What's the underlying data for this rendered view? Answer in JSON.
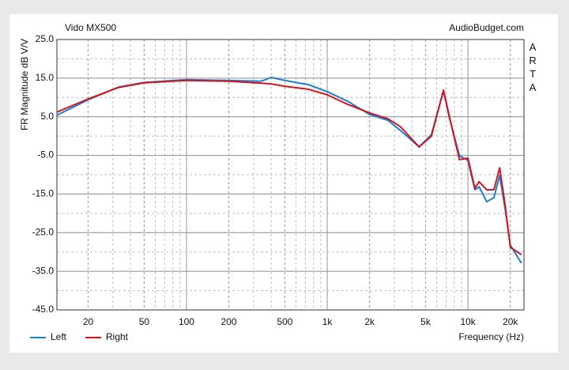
{
  "chart_data": {
    "type": "line",
    "title": "Vido MX500",
    "source": "AudioBudget.com",
    "side_label": "ARTA",
    "y_label": "FR Magnitude dB V/V",
    "x_label": "Frequency (Hz)",
    "log_x": true,
    "grid": true,
    "minor_grid": true,
    "legend": "bottom-left",
    "xlim": [
      12,
      25000
    ],
    "ylim": [
      -45,
      25
    ],
    "xticks": [
      20,
      50,
      100,
      200,
      500,
      {
        "value": 1000,
        "label": "1k"
      },
      {
        "value": 2000,
        "label": "2k"
      },
      {
        "value": 5000,
        "label": "5k"
      },
      {
        "value": 10000,
        "label": "10k"
      },
      {
        "value": 20000,
        "label": "20k"
      }
    ],
    "yticks": [
      {
        "value": 25,
        "label": "25.0"
      },
      {
        "value": 15,
        "label": "15.0"
      },
      {
        "value": 5,
        "label": "5.0"
      },
      {
        "value": -5,
        "label": "-5.0"
      },
      {
        "value": -15,
        "label": "-15.0"
      },
      {
        "value": -25,
        "label": "-25.0"
      },
      {
        "value": -35,
        "label": "-35.0"
      },
      {
        "value": -45,
        "label": "-45.0"
      }
    ],
    "x": [
      12,
      20,
      33,
      50,
      100,
      200,
      340,
      400,
      500,
      740,
      1000,
      1400,
      2000,
      2700,
      3300,
      4500,
      5500,
      6700,
      7400,
      8700,
      10000,
      11200,
      12000,
      13600,
      15300,
      16800,
      18400,
      20000,
      24000
    ],
    "series": [
      {
        "name": "Left",
        "color": "#1a7fd4",
        "values": [
          5.4,
          9.4,
          12.7,
          13.9,
          14.6,
          14.4,
          14.2,
          15.2,
          14.4,
          13.3,
          11.5,
          9.0,
          5.6,
          4.1,
          1.5,
          -2.8,
          0.4,
          11.7,
          4.5,
          -5.1,
          -6.3,
          -13.9,
          -13.1,
          -17.0,
          -15.9,
          -10.2,
          -19.0,
          -28.2,
          -32.9
        ]
      },
      {
        "name": "Right",
        "color": "#d4141c",
        "values": [
          6.2,
          9.6,
          12.6,
          13.8,
          14.4,
          14.2,
          13.7,
          13.5,
          12.9,
          12.1,
          10.7,
          8.2,
          6.0,
          4.5,
          2.5,
          -2.8,
          0.0,
          11.9,
          4.9,
          -6.1,
          -5.7,
          -13.5,
          -11.8,
          -13.9,
          -13.9,
          -8.2,
          -18.0,
          -28.8,
          -30.7
        ]
      }
    ]
  }
}
